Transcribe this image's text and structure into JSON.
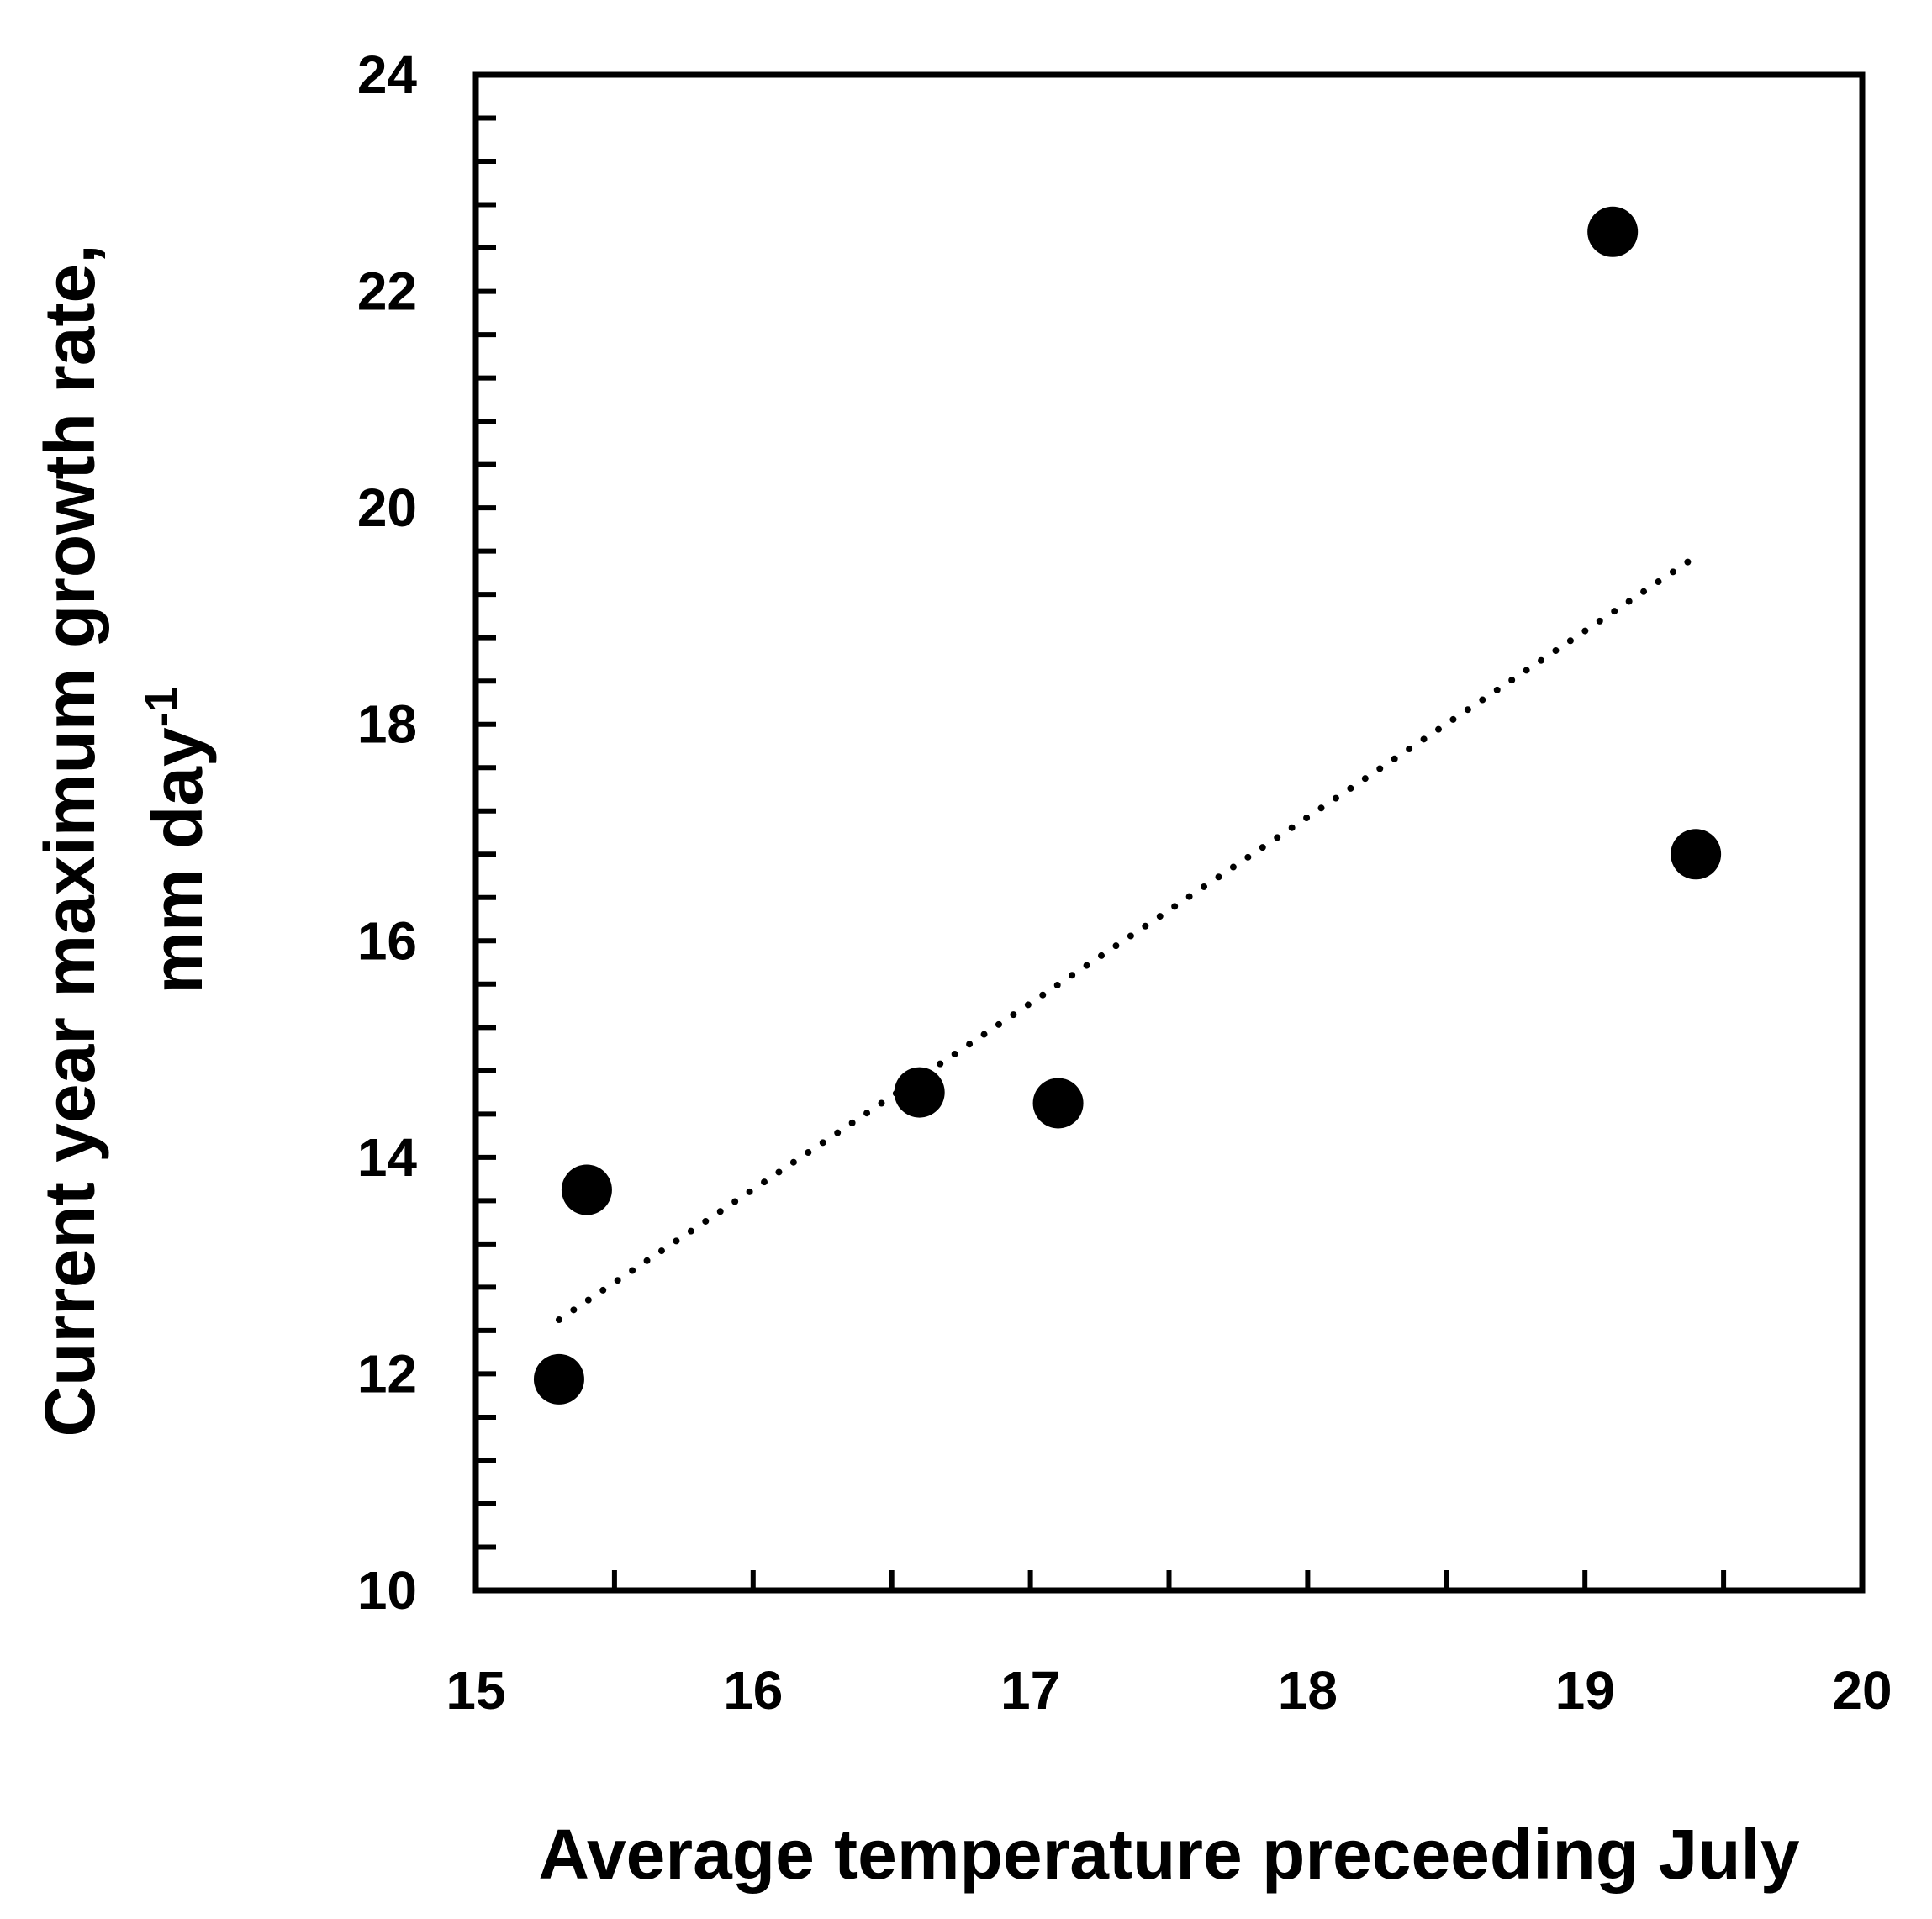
{
  "chart_data": {
    "type": "scatter",
    "title": "",
    "xlabel": "Average temperature preceeding July",
    "ylabel_line1": "Current year maximum growth rate,",
    "ylabel_line2_main": "mm day",
    "ylabel_line2_sup": "-1",
    "xlim": [
      15,
      20
    ],
    "ylim": [
      10,
      24
    ],
    "x_ticks": [
      15,
      16,
      17,
      18,
      19,
      20
    ],
    "y_ticks": [
      10,
      12,
      14,
      16,
      18,
      20,
      22,
      24
    ],
    "x_minor_step": 0.5,
    "y_minor_step": 0.4,
    "points": [
      {
        "x": 15.3,
        "y": 11.95
      },
      {
        "x": 15.4,
        "y": 13.7
      },
      {
        "x": 16.6,
        "y": 14.6
      },
      {
        "x": 17.1,
        "y": 14.5
      },
      {
        "x": 19.1,
        "y": 22.55
      },
      {
        "x": 19.4,
        "y": 16.8
      }
    ],
    "trendline": {
      "style": "dotted",
      "x_start": 15.3,
      "x_end": 19.4,
      "y_start": 12.5,
      "y_end": 19.55
    },
    "grid": false,
    "legend": "none",
    "colors": {
      "marker": "#000000",
      "axis": "#000000",
      "background": "#ffffff"
    }
  }
}
